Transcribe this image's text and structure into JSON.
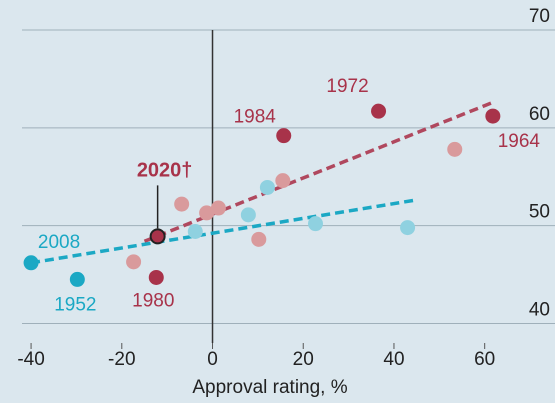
{
  "chart_data": {
    "type": "scatter",
    "xlabel": "Approval rating, %",
    "xlim": [
      -42,
      75.5
    ],
    "ylim": [
      38,
      70
    ],
    "xticks": [
      -40,
      -20,
      0,
      20,
      40,
      60
    ],
    "yticks": [
      40,
      50,
      60,
      70
    ],
    "points": [
      {
        "x": 36.6,
        "y": 61.7,
        "color": "#a8334a",
        "label": "1972"
      },
      {
        "x": 15.7,
        "y": 59.2,
        "color": "#a8334a",
        "label": "1984"
      },
      {
        "x": 61.8,
        "y": 61.2,
        "color": "#a8334a",
        "label": "1964"
      },
      {
        "x": -12.4,
        "y": 44.7,
        "color": "#a8334a",
        "label": "1980"
      },
      {
        "x": -12.1,
        "y": 48.9,
        "color": "#a8334a",
        "label": "2020†"
      },
      {
        "x": -40,
        "y": 46.2,
        "color": "#1ba8c4",
        "label": "2008"
      },
      {
        "x": -29.8,
        "y": 44.5,
        "color": "#1ba8c4",
        "label": "1952"
      },
      {
        "x": -6.8,
        "y": 52.2,
        "color": "#d99a9c"
      },
      {
        "x": -1.3,
        "y": 51.3,
        "color": "#d99a9c"
      },
      {
        "x": 1.3,
        "y": 51.8,
        "color": "#d99a9c"
      },
      {
        "x": 10.2,
        "y": 48.6,
        "color": "#d99a9c"
      },
      {
        "x": 15.5,
        "y": 54.6,
        "color": "#d99a9c"
      },
      {
        "x": 53.4,
        "y": 57.8,
        "color": "#d99a9c"
      },
      {
        "x": -17.4,
        "y": 46.3,
        "color": "#d99a9c"
      },
      {
        "x": -3.8,
        "y": 49.4,
        "color": "#8fd1e0"
      },
      {
        "x": 7.9,
        "y": 51.1,
        "color": "#8fd1e0"
      },
      {
        "x": 12.1,
        "y": 53.9,
        "color": "#8fd1e0"
      },
      {
        "x": 22.7,
        "y": 50.2,
        "color": "#8fd1e0"
      },
      {
        "x": 43,
        "y": 49.8,
        "color": "#8fd1e0"
      }
    ],
    "trendlines": [
      {
        "x": [
          -15,
          61.8
        ],
        "y": [
          48.4,
          62.6
        ],
        "color": "#b0485e"
      },
      {
        "x": [
          -40,
          44.6
        ],
        "y": [
          46.2,
          52.6
        ],
        "color": "#1ba8c4"
      }
    ]
  }
}
